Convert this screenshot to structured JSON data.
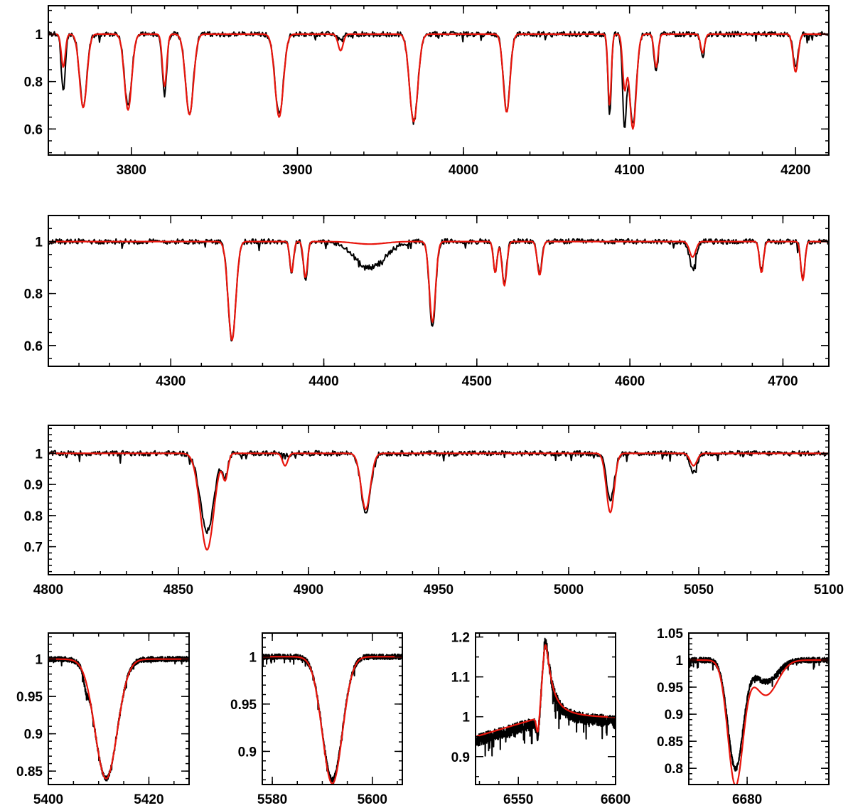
{
  "colors": {
    "observed": "#000000",
    "model": "#e8150c",
    "frame": "#000000"
  },
  "chart_data": [
    {
      "type": "line",
      "xlim": [
        3750,
        4220
      ],
      "ylim": [
        0.49,
        1.12
      ],
      "xticks": [
        3800,
        3900,
        4000,
        4100,
        4200
      ],
      "yticks": [
        0.6,
        0.8,
        1
      ],
      "ytick_labels": [
        "0.6",
        "0.8",
        "1"
      ],
      "xminor": 20,
      "yminor": 0.05,
      "lines": [
        {
          "wl": 3759,
          "obs": 0.76,
          "mod": 0.86,
          "w": 1.2
        },
        {
          "wl": 3771,
          "obs": 0.7,
          "mod": 0.69,
          "w": 2.2
        },
        {
          "wl": 3798,
          "obs": 0.7,
          "mod": 0.68,
          "w": 2.2
        },
        {
          "wl": 3820,
          "obs": 0.74,
          "mod": 0.78,
          "w": 1.3
        },
        {
          "wl": 3835,
          "obs": 0.67,
          "mod": 0.66,
          "w": 2.4
        },
        {
          "wl": 3889,
          "obs": 0.66,
          "mod": 0.65,
          "w": 2.5
        },
        {
          "wl": 3926,
          "obs": 0.97,
          "mod": 0.93,
          "w": 1.5
        },
        {
          "wl": 3970,
          "obs": 0.63,
          "mod": 0.63,
          "w": 2.5
        },
        {
          "wl": 4026,
          "obs": 0.68,
          "mod": 0.67,
          "w": 2.0
        },
        {
          "wl": 4088,
          "obs": 0.66,
          "mod": 0.7,
          "w": 1.0
        },
        {
          "wl": 4097,
          "obs": 0.62,
          "mod": 0.78,
          "w": 1.2
        },
        {
          "wl": 4102,
          "obs": 0.62,
          "mod": 0.6,
          "w": 2.0
        },
        {
          "wl": 4116,
          "obs": 0.84,
          "mod": 0.86,
          "w": 1.2
        },
        {
          "wl": 4144,
          "obs": 0.9,
          "mod": 0.92,
          "w": 1.2
        },
        {
          "wl": 4200,
          "obs": 0.86,
          "mod": 0.84,
          "w": 1.5
        }
      ]
    },
    {
      "type": "line",
      "xlim": [
        4220,
        4730
      ],
      "ylim": [
        0.52,
        1.1
      ],
      "xticks": [
        4300,
        4400,
        4500,
        4600,
        4700
      ],
      "yticks": [
        0.6,
        0.8,
        1
      ],
      "ytick_labels": [
        "0.6",
        "0.8",
        "1"
      ],
      "xminor": 20,
      "yminor": 0.05,
      "lines": [
        {
          "wl": 4340,
          "obs": 0.62,
          "mod": 0.62,
          "w": 2.5
        },
        {
          "wl": 4379,
          "obs": 0.88,
          "mod": 0.88,
          "w": 1.2
        },
        {
          "wl": 4388,
          "obs": 0.85,
          "mod": 0.86,
          "w": 1.3
        },
        {
          "wl": 4430,
          "obs": 0.9,
          "mod": 0.99,
          "w": 10
        },
        {
          "wl": 4471,
          "obs": 0.67,
          "mod": 0.69,
          "w": 2.0
        },
        {
          "wl": 4512,
          "obs": 0.88,
          "mod": 0.88,
          "w": 1.2
        },
        {
          "wl": 4518,
          "obs": 0.84,
          "mod": 0.83,
          "w": 1.5
        },
        {
          "wl": 4541,
          "obs": 0.88,
          "mod": 0.87,
          "w": 1.5
        },
        {
          "wl": 4641,
          "obs": 0.89,
          "mod": 0.94,
          "w": 2.0
        },
        {
          "wl": 4686,
          "obs": 0.89,
          "mod": 0.88,
          "w": 1.3
        },
        {
          "wl": 4713,
          "obs": 0.85,
          "mod": 0.85,
          "w": 1.3
        }
      ]
    },
    {
      "type": "line",
      "xlim": [
        4800,
        5100
      ],
      "ylim": [
        0.61,
        1.09
      ],
      "xticks": [
        4800,
        4850,
        4900,
        4950,
        5000,
        5050,
        5100
      ],
      "yticks": [
        0.7,
        0.8,
        0.9,
        1
      ],
      "ytick_labels": [
        "0.7",
        "0.8",
        "0.9",
        "1"
      ],
      "xminor": 10,
      "yminor": 0.02,
      "lines": [
        {
          "wl": 4861,
          "obs": 0.75,
          "mod": 0.69,
          "w": 2.6
        },
        {
          "wl": 4868,
          "obs": 0.93,
          "mod": 0.92,
          "w": 1.0
        },
        {
          "wl": 4891,
          "obs": 0.99,
          "mod": 0.96,
          "w": 1.0
        },
        {
          "wl": 4922,
          "obs": 0.81,
          "mod": 0.82,
          "w": 1.8
        },
        {
          "wl": 5016,
          "obs": 0.85,
          "mod": 0.81,
          "w": 1.5
        },
        {
          "wl": 5048,
          "obs": 0.94,
          "mod": 0.96,
          "w": 1.3
        }
      ]
    },
    {
      "type": "line",
      "xlim": [
        5400,
        5428
      ],
      "ylim": [
        0.832,
        1.035
      ],
      "xticks": [
        5400,
        5420
      ],
      "yticks": [
        0.85,
        0.9,
        0.95,
        1
      ],
      "ytick_labels": [
        "0.85",
        "0.9",
        "0.95",
        "1"
      ],
      "xminor": 5,
      "yminor": 0.01,
      "lines": [
        {
          "wl": 5411.5,
          "obs": 0.84,
          "mod": 0.84,
          "w": 2.2
        },
        {
          "wl": 5407.5,
          "obs": 0.985,
          "mod": 1.0,
          "w": 0.4
        }
      ]
    },
    {
      "type": "line",
      "xlim": [
        5578,
        5606
      ],
      "ylim": [
        0.865,
        1.025
      ],
      "xticks": [
        5580,
        5600
      ],
      "yticks": [
        0.9,
        0.95,
        1
      ],
      "ytick_labels": [
        "0.9",
        "0.95",
        "1"
      ],
      "xminor": 5,
      "yminor": 0.01,
      "lines": [
        {
          "wl": 5592,
          "obs": 0.87,
          "mod": 0.866,
          "w": 2.0
        }
      ]
    },
    {
      "type": "line",
      "xlim": [
        6528,
        6600
      ],
      "ylim": [
        0.83,
        1.21
      ],
      "xticks": [
        6550,
        6600
      ],
      "yticks": [
        0.9,
        1,
        1.1,
        1.2
      ],
      "ytick_labels": [
        "0.9",
        "1",
        "1.1",
        "1.2"
      ],
      "xminor": 10,
      "yminor": 0.05,
      "lines": [],
      "emission": {
        "wl": 6564,
        "peak": 1.19,
        "model_peak": 1.17
      }
    },
    {
      "type": "line",
      "xlim": [
        6670,
        6694
      ],
      "ylim": [
        0.77,
        1.05
      ],
      "xticks": [
        6680
      ],
      "yticks": [
        0.8,
        0.85,
        0.9,
        0.95,
        1,
        1.05
      ],
      "ytick_labels": [
        "0.8",
        "0.85",
        "0.9",
        "0.95",
        "1",
        "1.05"
      ],
      "xminor": 5,
      "yminor": 0.01,
      "lines": [
        {
          "wl": 6678,
          "obs": 0.8,
          "mod": 0.77,
          "w": 1.3
        },
        {
          "wl": 6683.2,
          "obs": 0.96,
          "mod": 0.935,
          "w": 2.0
        }
      ]
    }
  ]
}
